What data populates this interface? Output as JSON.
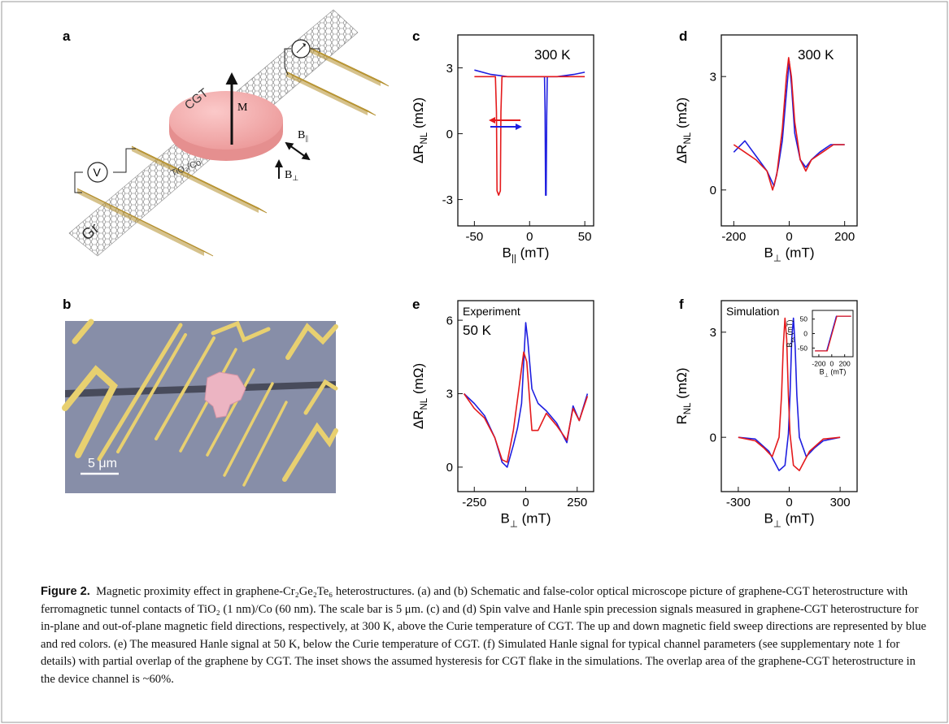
{
  "figure": {
    "panel_letters": [
      "a",
      "b",
      "c",
      "d",
      "e",
      "f"
    ],
    "schematic": {
      "cgt_label": "CGT",
      "m_label": "M",
      "b_par_label": "B",
      "b_par_sub": "||",
      "b_perp_label": "B",
      "b_perp_sub": "⊥",
      "contact_label": "TiO₂/Co",
      "voltmeter_label": "V",
      "gr_label": "Gr"
    },
    "micrograph": {
      "scale_label": "5 μm"
    },
    "caption": {
      "label": "Figure 2.",
      "text": "Magnetic proximity effect in graphene-Cr₂Ge₂Te₆ heterostructures. (a) and (b) Schematic and false-color optical microscope picture of graphene-CGT heterostructure with ferromagnetic tunnel contacts of TiO₂ (1 nm)/Co (60 nm). The scale bar is 5 μm. (c) and (d) Spin valve and Hanle spin precession signals measured in graphene-CGT heterostructure for in-plane and out-of-plane magnetic field directions, respectively, at 300 K, above the Curie temperature of CGT. The up and down magnetic field sweep directions are represented by blue and red colors. (e) The measured Hanle signal at 50 K, below the Curie temperature of CGT. (f) Simulated Hanle signal for typical channel parameters (see supplementary note 1 for details) with partial overlap of the graphene by CGT. The inset shows the assumed hysteresis for CGT flake in the simulations. The overlap area of the graphene-CGT heterostructure in the device channel is ~60%."
    }
  },
  "colors": {
    "up_sweep": "#1f1fe0",
    "down_sweep": "#e41a1c"
  },
  "chart_data": [
    {
      "panel": "c",
      "type": "line",
      "annotation": "300 K",
      "xlabel": "B",
      "xlabel_sub": "||",
      "xlabel_unit": " (mT)",
      "ylabel": "ΔR",
      "ylabel_sub": "NL",
      "ylabel_unit": " (mΩ)",
      "xlim": [
        -65,
        58
      ],
      "ylim": [
        -4.2,
        4.5
      ],
      "xticks": [
        -50,
        0,
        50
      ],
      "yticks": [
        -3,
        0,
        3
      ],
      "legend": "arrows (red left, blue right)",
      "series": [
        {
          "color": "blue",
          "x": [
            -50,
            -35,
            -20,
            -5,
            10,
            13.5,
            14,
            14.5,
            15,
            15.5,
            16,
            25,
            40,
            50
          ],
          "y": [
            2.9,
            2.7,
            2.6,
            2.6,
            2.6,
            2.6,
            1.0,
            -2.8,
            -2.8,
            0.8,
            2.6,
            2.6,
            2.7,
            2.8
          ]
        },
        {
          "color": "red",
          "x": [
            50,
            35,
            20,
            5,
            -10,
            -25,
            -26,
            -26.5,
            -28,
            -29.5,
            -30,
            -31,
            -40,
            -50
          ],
          "y": [
            2.6,
            2.6,
            2.6,
            2.6,
            2.6,
            2.6,
            1.0,
            -2.6,
            -2.8,
            -2.6,
            1.0,
            2.6,
            2.6,
            2.6
          ]
        }
      ]
    },
    {
      "panel": "d",
      "type": "line",
      "annotation": "300 K",
      "xlabel": "B",
      "xlabel_sub": "⊥",
      "xlabel_unit": " (mT)",
      "ylabel": "ΔR",
      "ylabel_sub": "NL",
      "ylabel_unit": " (mΩ)",
      "xlim": [
        -245,
        245
      ],
      "ylim": [
        -0.95,
        4.1
      ],
      "xticks": [
        -200,
        0,
        200
      ],
      "yticks": [
        0,
        3
      ],
      "series": [
        {
          "color": "blue",
          "x": [
            -200,
            -160,
            -120,
            -80,
            -55,
            -40,
            -25,
            -12,
            0,
            8,
            20,
            40,
            60,
            80,
            110,
            150,
            200
          ],
          "y": [
            1.0,
            1.3,
            0.9,
            0.5,
            0.1,
            0.6,
            1.3,
            2.4,
            3.4,
            2.8,
            1.5,
            0.8,
            0.6,
            0.8,
            1.0,
            1.2,
            1.2
          ]
        },
        {
          "color": "red",
          "x": [
            200,
            160,
            120,
            80,
            60,
            40,
            20,
            8,
            -2,
            -10,
            -25,
            -45,
            -60,
            -80,
            -120,
            -160,
            -200
          ],
          "y": [
            1.2,
            1.2,
            1.0,
            0.8,
            0.5,
            0.8,
            1.8,
            3.0,
            3.5,
            3.0,
            1.6,
            0.4,
            0.0,
            0.5,
            0.8,
            1.0,
            1.2
          ]
        }
      ]
    },
    {
      "panel": "e",
      "type": "line",
      "annotation_title": "Experiment",
      "annotation": "50 K",
      "xlabel": "B",
      "xlabel_sub": "⊥",
      "xlabel_unit": " (mT)",
      "ylabel": "ΔR",
      "ylabel_sub": "NL",
      "ylabel_unit": " (mΩ)",
      "xlim": [
        -330,
        330
      ],
      "ylim": [
        -1.0,
        6.8
      ],
      "xticks": [
        -250,
        0,
        250
      ],
      "yticks": [
        0,
        3,
        6
      ],
      "series": [
        {
          "color": "blue",
          "x": [
            -300,
            -250,
            -200,
            -150,
            -115,
            -90,
            -60,
            -40,
            -20,
            0,
            10,
            30,
            60,
            100,
            150,
            200,
            230,
            260,
            300
          ],
          "y": [
            3.0,
            2.6,
            2.1,
            1.2,
            0.2,
            0.0,
            0.9,
            1.6,
            2.6,
            5.9,
            5.2,
            3.2,
            2.6,
            2.3,
            1.8,
            1.0,
            2.5,
            1.9,
            3.0
          ]
        },
        {
          "color": "red",
          "x": [
            300,
            260,
            230,
            200,
            150,
            100,
            60,
            30,
            5,
            -10,
            -30,
            -60,
            -90,
            -115,
            -150,
            -200,
            -250,
            -300
          ],
          "y": [
            2.9,
            1.9,
            2.4,
            1.1,
            1.7,
            2.2,
            1.5,
            1.5,
            4.3,
            4.7,
            3.4,
            1.5,
            0.2,
            0.3,
            1.2,
            2.0,
            2.4,
            3.0
          ]
        }
      ]
    },
    {
      "panel": "f",
      "type": "line",
      "annotation": "Simulation",
      "xlabel": "B",
      "xlabel_sub": "⊥",
      "xlabel_unit": " (mT)",
      "ylabel": "R",
      "ylabel_sub": "NL",
      "ylabel_unit": " (mΩ)",
      "xlim": [
        -400,
        400
      ],
      "ylim": [
        -1.55,
        3.9
      ],
      "xticks": [
        -300,
        0,
        300
      ],
      "yticks": [
        0,
        3
      ],
      "series": [
        {
          "color": "blue",
          "x": [
            -300,
            -200,
            -120,
            -60,
            -25,
            -5,
            5,
            15,
            25,
            35,
            45,
            60,
            100,
            150,
            200,
            300
          ],
          "y": [
            0.0,
            -0.05,
            -0.4,
            -0.95,
            -0.8,
            0.1,
            1.2,
            2.8,
            3.4,
            2.6,
            1.2,
            0.0,
            -0.55,
            -0.3,
            -0.1,
            0.0
          ]
        },
        {
          "color": "red",
          "x": [
            -300,
            -200,
            -150,
            -100,
            -60,
            -45,
            -35,
            -25,
            -15,
            -5,
            5,
            25,
            60,
            120,
            200,
            300
          ],
          "y": [
            0.0,
            -0.1,
            -0.3,
            -0.55,
            0.0,
            1.2,
            2.6,
            3.4,
            2.8,
            1.2,
            0.1,
            -0.8,
            -0.95,
            -0.4,
            -0.05,
            0.0
          ]
        }
      ],
      "inset": {
        "xlabel": "B",
        "xlabel_sub": "⊥",
        "xlabel_unit": " (mT)",
        "ylabel": "B",
        "ylabel_sub": "ex",
        "ylabel_unit": " (mT)",
        "xlim": [
          -300,
          330
        ],
        "ylim": [
          -80,
          80
        ],
        "xticks": [
          -200,
          0,
          200
        ],
        "yticks": [
          -50,
          0,
          50
        ],
        "series": [
          {
            "color": "blue",
            "x": [
              -260,
              -80,
              70,
              300
            ],
            "y": [
              -60,
              -60,
              60,
              60
            ]
          },
          {
            "color": "red",
            "x": [
              300,
              80,
              -70,
              -260
            ],
            "y": [
              60,
              60,
              -60,
              -60
            ]
          }
        ]
      }
    }
  ]
}
